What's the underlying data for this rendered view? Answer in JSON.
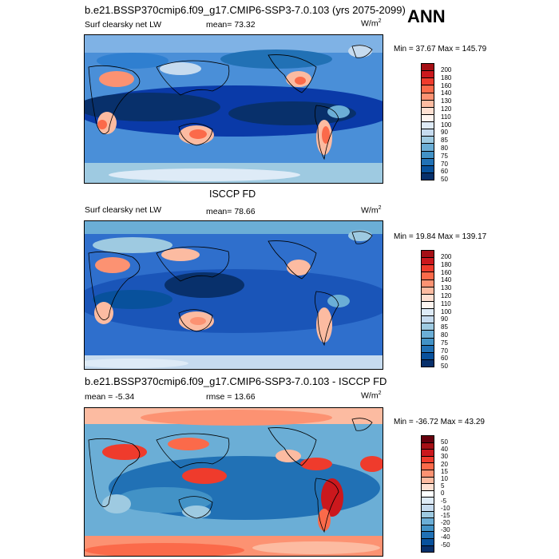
{
  "header": {
    "title": "b.e21.BSSP370cmip6.f09_g17.CMIP6-SSP3-7.0.103 (yrs 2075-2099)",
    "season": "ANN"
  },
  "panels": [
    {
      "id": "model",
      "variable": "Surf clearsky net LW",
      "stat_label": "mean=",
      "stat_value": "73.32",
      "units": "W/m",
      "units_exp": "2",
      "minmax": "Min = 37.67 Max = 145.79",
      "palette": [
        "#a50f15",
        "#cb181d",
        "#ef3b2c",
        "#fb6a4a",
        "#fc9272",
        "#fcbba1",
        "#fee0d2",
        "#fff5f0",
        "#deebf7",
        "#c6dbef",
        "#9ecae1",
        "#6baed6",
        "#4292c6",
        "#2171b5",
        "#08519c",
        "#08306b"
      ],
      "levels": [
        "200",
        "180",
        "160",
        "140",
        "130",
        "120",
        "110",
        "100",
        "90",
        "85",
        "80",
        "75",
        "70",
        "60",
        "50"
      ]
    },
    {
      "id": "obs",
      "title": "ISCCP FD",
      "variable": "Surf clearsky net LW",
      "stat_label": "mean=",
      "stat_value": "78.66",
      "units": "W/m",
      "units_exp": "2",
      "minmax": "Min = 19.84 Max = 139.17",
      "levels": [
        "200",
        "180",
        "160",
        "140",
        "130",
        "120",
        "110",
        "100",
        "90",
        "85",
        "80",
        "75",
        "70",
        "60",
        "50"
      ]
    },
    {
      "id": "diff",
      "title": "b.e21.BSSP370cmip6.f09_g17.CMIP6-SSP3-7.0.103 - ISCCP FD",
      "stat_label": "mean =",
      "stat_value": "-5.34",
      "rmse_label": "rmse =",
      "rmse_value": "13.66",
      "units": "W/m",
      "units_exp": "2",
      "minmax": "Min = -36.72 Max = 43.29",
      "palette": [
        "#67000d",
        "#a50f15",
        "#cb181d",
        "#ef3b2c",
        "#fb6a4a",
        "#fc9272",
        "#fcbba1",
        "#fee0d2",
        "#ffffff",
        "#deebf7",
        "#c6dbef",
        "#9ecae1",
        "#6baed6",
        "#4292c6",
        "#2171b5",
        "#08519c",
        "#08306b"
      ],
      "levels": [
        "50",
        "40",
        "30",
        "20",
        "15",
        "10",
        "5",
        "0",
        "-5",
        "-10",
        "-15",
        "-20",
        "-30",
        "-40",
        "-50"
      ]
    }
  ]
}
